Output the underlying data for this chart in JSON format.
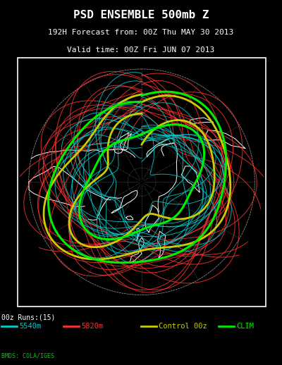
{
  "title_line1": "PSD ENSEMBLE 500mb Z",
  "title_line2": "192H Forecast from: 00Z Thu MAY 30 2013",
  "title_line3": "Valid time: 00Z Fri JUN 07 2013",
  "runs_label": "00z Runs:(15)",
  "legend_items": [
    {
      "label": "5540m",
      "color": "#00CCCC"
    },
    {
      "label": "5820m",
      "color": "#FF3333"
    },
    {
      "label": "Control 00z",
      "color": "#CCCC00"
    },
    {
      "label": "CLIM",
      "color": "#00EE00"
    }
  ],
  "credit": "BMDS: COLA/IGES",
  "background": "#000000",
  "title_color": "#FFFFFF",
  "grid_color": "#FFFFFF",
  "fig_width": 4.0,
  "fig_height": 5.18,
  "dpi": 100
}
